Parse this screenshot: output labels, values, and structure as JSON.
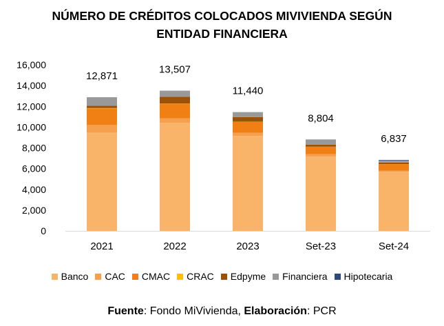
{
  "chart_data": {
    "type": "bar",
    "stacked": true,
    "title_line1": "NÚMERO DE CRÉDITOS COLOCADOS MIVIVIENDA SEGÚN",
    "title_line2": "ENTIDAD FINANCIERA",
    "categories": [
      "2021",
      "2022",
      "2023",
      "Set-23",
      "Set-24"
    ],
    "totals": [
      "12,871",
      "13,507",
      "11,440",
      "8,804",
      "6,837"
    ],
    "ylim": [
      0,
      16000
    ],
    "yticks": [
      "0",
      "2,000",
      "4,000",
      "6,000",
      "8,000",
      "10,000",
      "12,000",
      "14,000",
      "16,000"
    ],
    "ytick_values": [
      0,
      2000,
      4000,
      6000,
      8000,
      10000,
      12000,
      14000,
      16000
    ],
    "grid": false,
    "legend_position": "bottom",
    "series": [
      {
        "name": "Banco",
        "color": "#F9B46A",
        "values": [
          9450,
          10400,
          9150,
          7150,
          5700
        ]
      },
      {
        "name": "CAC",
        "color": "#F6A04E",
        "values": [
          750,
          450,
          300,
          250,
          110
        ]
      },
      {
        "name": "CMAC",
        "color": "#F07F14",
        "values": [
          1600,
          1400,
          1050,
          700,
          620
        ]
      },
      {
        "name": "CRAC",
        "color": "#FFC000",
        "values": [
          30,
          20,
          15,
          10,
          5
        ]
      },
      {
        "name": "Edpyme",
        "color": "#9C5108",
        "values": [
          230,
          650,
          450,
          200,
          150
        ]
      },
      {
        "name": "Financiera",
        "color": "#999999",
        "values": [
          800,
          580,
          470,
          480,
          200
        ]
      },
      {
        "name": "Hipotecaria",
        "color": "#2F4A7A",
        "values": [
          11,
          7,
          5,
          14,
          52
        ]
      }
    ],
    "source_label": "Fuente",
    "source_value": ": Fondo MiVivienda, ",
    "elab_label": "Elaboración",
    "elab_value": ": PCR"
  }
}
